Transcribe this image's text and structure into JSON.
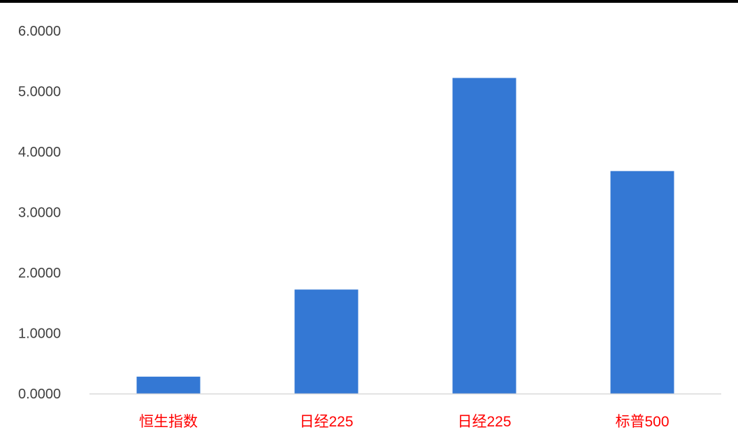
{
  "chart_data": {
    "type": "bar",
    "categories": [
      "恒生指数",
      "日经225",
      "日经225",
      "标普500"
    ],
    "values": [
      0.28,
      1.72,
      5.22,
      3.68
    ],
    "title": "",
    "xlabel": "",
    "ylabel": "",
    "ylim": [
      0,
      6
    ],
    "yticks": [
      "0.0000",
      "1.0000",
      "2.0000",
      "3.0000",
      "4.0000",
      "5.0000",
      "6.0000"
    ],
    "grid": false,
    "legend": "none",
    "colors": {
      "bar": "#3478D4",
      "category_label": "#FF0000",
      "axis_line": "#D9D9D9",
      "tick_label": "#404040"
    }
  }
}
